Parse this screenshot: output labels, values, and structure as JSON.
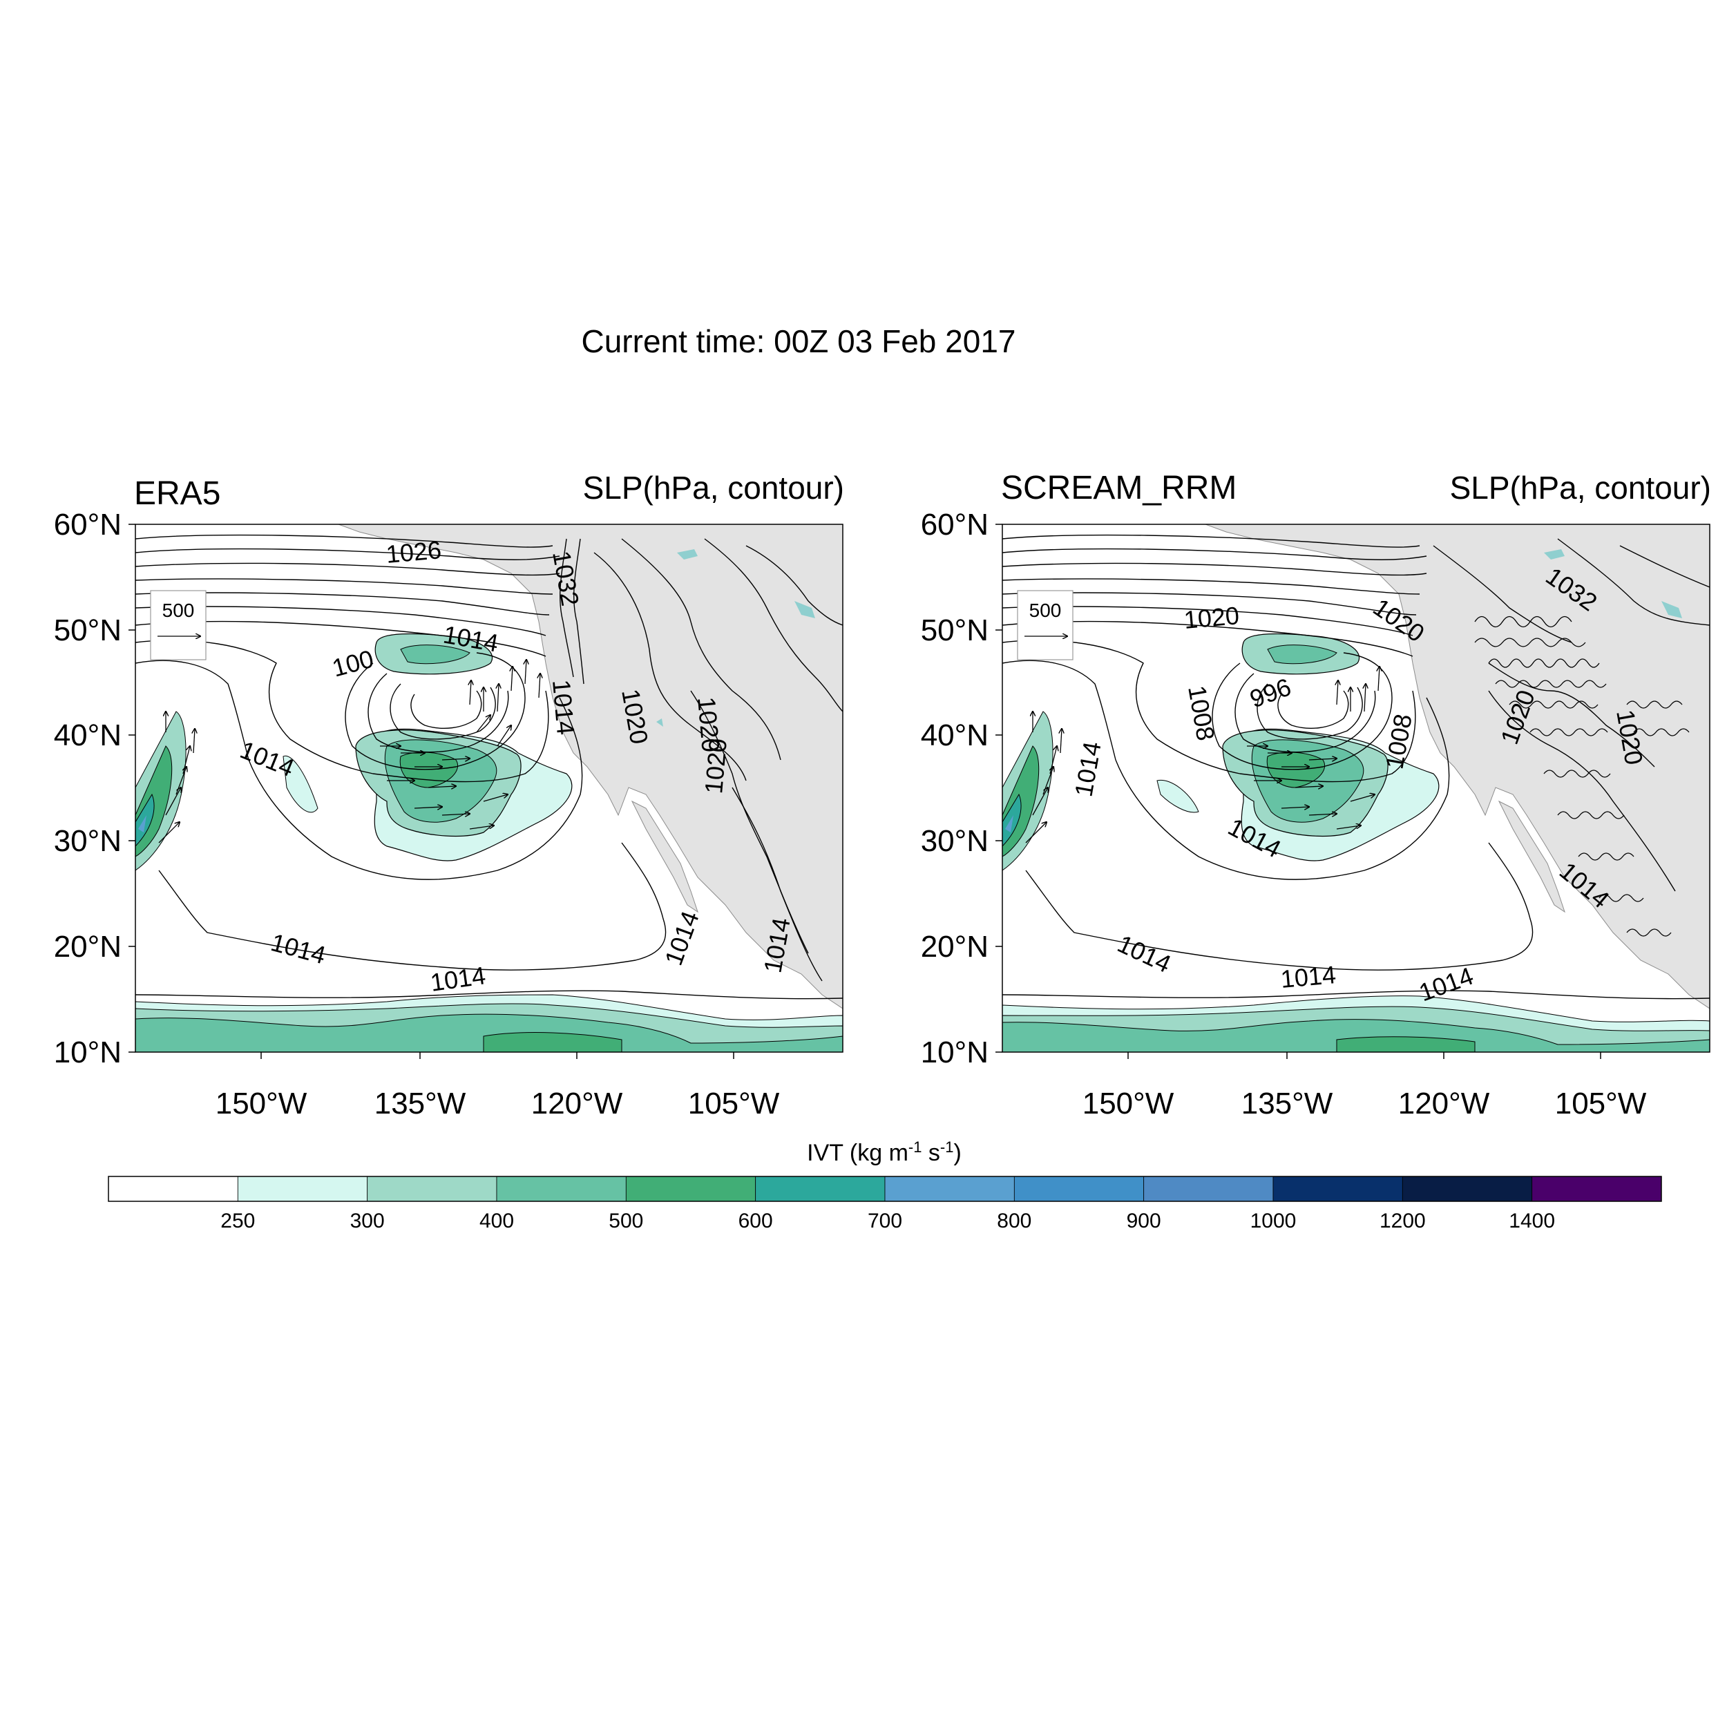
{
  "figure": {
    "title": "Current time: 00Z 03 Feb 2017",
    "colors": {
      "land": "#e3e3e3",
      "lake": "#8fcfcf",
      "contour": "#000000"
    }
  },
  "panels": [
    {
      "id": "era5",
      "left_title": "ERA5",
      "right_title": "SLP(hPa, contour)",
      "lat_ticks": [
        "60°N",
        "50°N",
        "40°N",
        "30°N",
        "20°N",
        "10°N"
      ],
      "lon_ticks": [
        "150°W",
        "135°W",
        "120°W",
        "105°W"
      ],
      "ref_vector_label": "500",
      "contour_labels": [
        "1026",
        "1032",
        "1014",
        "100",
        "1014",
        "1020",
        "1020",
        "1014",
        "1014",
        "1014",
        "1020",
        "1014",
        "1014"
      ]
    },
    {
      "id": "scream_rrm",
      "left_title": "SCREAM_RRM",
      "right_title": "SLP(hPa, contour)",
      "lat_ticks": [
        "60°N",
        "50°N",
        "40°N",
        "30°N",
        "20°N",
        "10°N"
      ],
      "lon_ticks": [
        "150°W",
        "135°W",
        "120°W",
        "105°W"
      ],
      "ref_vector_label": "500",
      "contour_labels": [
        "1020",
        "1020",
        "1032",
        "1008",
        "996",
        "1014",
        "1014",
        "1008",
        "1020",
        "1020",
        "1014",
        "1014",
        "1014",
        "1014"
      ]
    }
  ],
  "colorbar": {
    "title_main": "IVT (kg m",
    "title_sup1": "-1",
    "title_mid": " s",
    "title_sup2": "-1",
    "title_end": ")",
    "levels": [
      "250",
      "300",
      "400",
      "500",
      "600",
      "700",
      "800",
      "900",
      "1000",
      "1200",
      "1400"
    ],
    "colors": [
      "#ffffff",
      "#d5f7f0",
      "#9ed9c7",
      "#66c2a4",
      "#41ae76",
      "#2ca89c",
      "#5aa0d0",
      "#4090c8",
      "#4f8ac4",
      "#08306b",
      "#081d45",
      "#4a006a"
    ]
  }
}
